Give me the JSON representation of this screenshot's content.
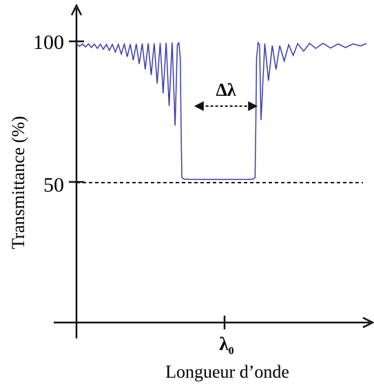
{
  "chart_data": {
    "type": "line",
    "title": "",
    "xlabel": "Longueur d’onde",
    "ylabel": "Transmittance (%)",
    "xlim": [
      -1,
      1
    ],
    "ylim": [
      0,
      100
    ],
    "ytick_labels": [
      "50",
      "100"
    ],
    "yticks": [
      50,
      100
    ],
    "xtick_label": "λ",
    "xtick_subscript": "0",
    "xticks": [
      0
    ],
    "reference_line": {
      "y": 50,
      "style": "dashed"
    },
    "annotation": {
      "label": "Δλ",
      "x_start": -0.2,
      "x_end": 0.2,
      "y": 75
    },
    "grid": false,
    "legend": "none",
    "colors": {
      "series": "#3a3ab0",
      "axes": "#111111",
      "text": "#000000"
    },
    "series": [
      {
        "points": [
          [
            -1.0,
            99.2
          ],
          [
            -0.98,
            98.2
          ],
          [
            -0.96,
            99.1
          ],
          [
            -0.94,
            98.0
          ],
          [
            -0.92,
            99.1
          ],
          [
            -0.9,
            97.8
          ],
          [
            -0.88,
            99.0
          ],
          [
            -0.86,
            97.5
          ],
          [
            -0.84,
            99.0
          ],
          [
            -0.82,
            97.2
          ],
          [
            -0.8,
            98.9
          ],
          [
            -0.78,
            96.8
          ],
          [
            -0.76,
            98.9
          ],
          [
            -0.74,
            96.2
          ],
          [
            -0.72,
            98.9
          ],
          [
            -0.7,
            95.5
          ],
          [
            -0.68,
            99.0
          ],
          [
            -0.66,
            94.5
          ],
          [
            -0.64,
            99.0
          ],
          [
            -0.62,
            93.3
          ],
          [
            -0.6,
            99.1
          ],
          [
            -0.58,
            92.0
          ],
          [
            -0.56,
            99.2
          ],
          [
            -0.54,
            90.0
          ],
          [
            -0.52,
            99.3
          ],
          [
            -0.5,
            88.0
          ],
          [
            -0.48,
            99.3
          ],
          [
            -0.46,
            85.0
          ],
          [
            -0.44,
            99.4
          ],
          [
            -0.42,
            81.5
          ],
          [
            -0.4,
            99.5
          ],
          [
            -0.38,
            77.0
          ],
          [
            -0.36,
            99.6
          ],
          [
            -0.34,
            70.0
          ],
          [
            -0.325,
            98.8
          ],
          [
            -0.315,
            99.5
          ],
          [
            -0.305,
            94.0
          ],
          [
            -0.3,
            70.0
          ],
          [
            -0.295,
            51.5
          ],
          [
            -0.28,
            51.0
          ],
          [
            -0.24,
            50.9
          ],
          [
            -0.2,
            50.9
          ],
          [
            -0.16,
            50.9
          ],
          [
            -0.12,
            50.9
          ],
          [
            -0.08,
            50.9
          ],
          [
            -0.04,
            50.9
          ],
          [
            0.0,
            50.9
          ],
          [
            0.04,
            50.9
          ],
          [
            0.08,
            50.9
          ],
          [
            0.12,
            50.9
          ],
          [
            0.16,
            50.9
          ],
          [
            0.18,
            51.0
          ],
          [
            0.195,
            51.5
          ],
          [
            0.2,
            70.0
          ],
          [
            0.205,
            94.0
          ],
          [
            0.215,
            99.5
          ],
          [
            0.225,
            98.8
          ],
          [
            0.235,
            72.0
          ],
          [
            0.26,
            99.2
          ],
          [
            0.285,
            86.0
          ],
          [
            0.31,
            98.5
          ],
          [
            0.335,
            90.0
          ],
          [
            0.36,
            98.5
          ],
          [
            0.39,
            93.0
          ],
          [
            0.42,
            98.8
          ],
          [
            0.45,
            95.0
          ],
          [
            0.48,
            99.2
          ],
          [
            0.52,
            96.5
          ],
          [
            0.56,
            99.3
          ],
          [
            0.6,
            97.5
          ],
          [
            0.65,
            99.3
          ],
          [
            0.7,
            97.6
          ],
          [
            0.75,
            99.1
          ],
          [
            0.8,
            97.8
          ],
          [
            0.85,
            99.1
          ],
          [
            0.9,
            98.4
          ],
          [
            0.94,
            99.2
          ]
        ]
      }
    ]
  }
}
